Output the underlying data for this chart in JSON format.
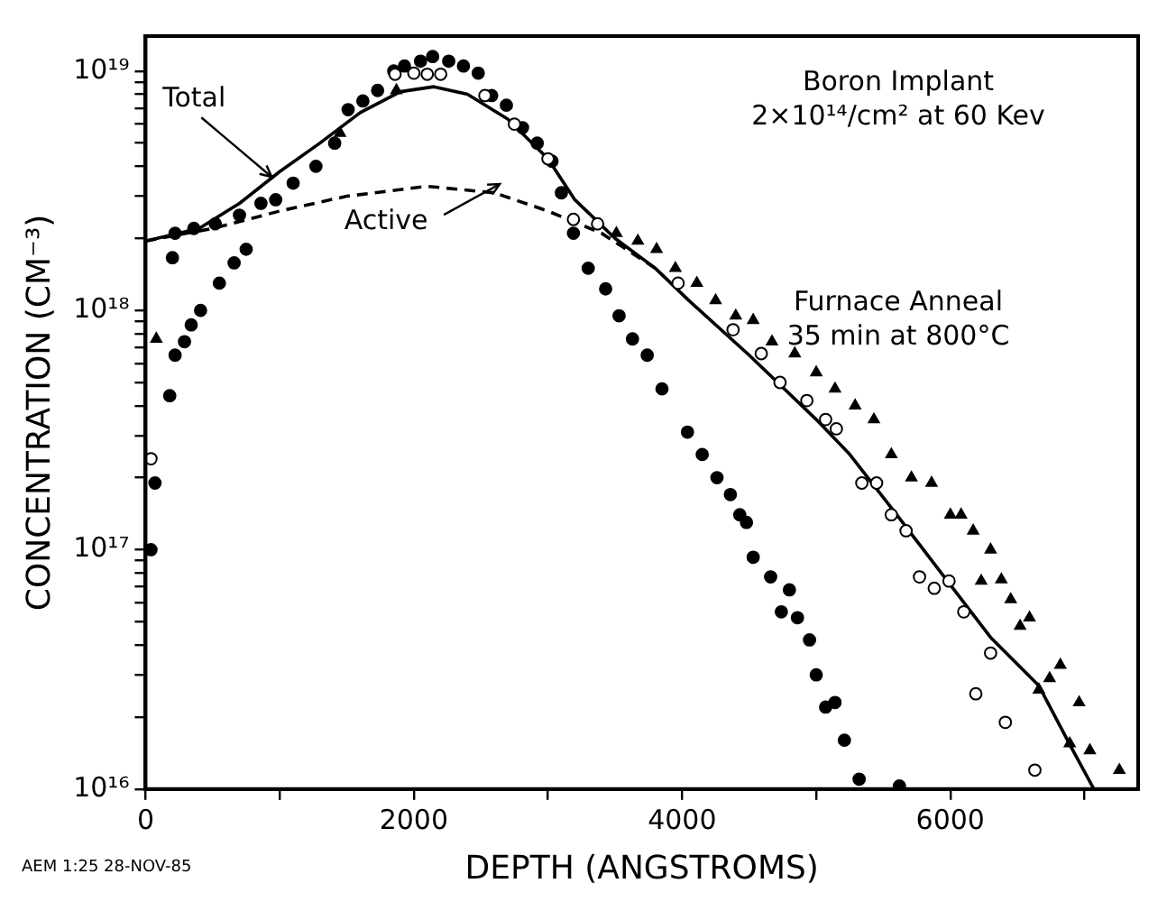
{
  "chart_data": {
    "type": "scatter",
    "xlabel": "DEPTH (ANGSTROMS)",
    "ylabel": "CONCENTRATION (CM⁻³)",
    "log": "y",
    "grid": false,
    "legend": false,
    "xlim": [
      0,
      7400
    ],
    "xticks": [
      0,
      {
        "value": 1000,
        "label": null
      },
      2000,
      {
        "value": 3000,
        "label": null
      },
      4000,
      {
        "value": 5000,
        "label": null
      },
      6000,
      {
        "value": 7000,
        "label": null
      }
    ],
    "ylim": [
      1e+16,
      1.4e+19
    ],
    "yticks": [
      {
        "value": 1e+16,
        "label": "10¹⁶"
      },
      {
        "value": 2e+16,
        "label": null
      },
      {
        "value": 3e+16,
        "label": null
      },
      {
        "value": 4e+16,
        "label": null
      },
      {
        "value": 5e+16,
        "label": null
      },
      {
        "value": 6e+16,
        "label": null
      },
      {
        "value": 7e+16,
        "label": null
      },
      {
        "value": 8e+16,
        "label": null
      },
      {
        "value": 9e+16,
        "label": null
      },
      {
        "value": 1e+17,
        "label": "10¹⁷"
      },
      {
        "value": 2e+17,
        "label": null
      },
      {
        "value": 3e+17,
        "label": null
      },
      {
        "value": 4e+17,
        "label": null
      },
      {
        "value": 5e+17,
        "label": null
      },
      {
        "value": 6e+17,
        "label": null
      },
      {
        "value": 7e+17,
        "label": null
      },
      {
        "value": 8e+17,
        "label": null
      },
      {
        "value": 9e+17,
        "label": null
      },
      {
        "value": 1e+18,
        "label": "10¹⁸"
      },
      {
        "value": 2e+18,
        "label": null
      },
      {
        "value": 3e+18,
        "label": null
      },
      {
        "value": 4e+18,
        "label": null
      },
      {
        "value": 5e+18,
        "label": null
      },
      {
        "value": 6e+18,
        "label": null
      },
      {
        "value": 7e+18,
        "label": null
      },
      {
        "value": 8e+18,
        "label": null
      },
      {
        "value": 9e+18,
        "label": null
      },
      {
        "value": 1e+19,
        "label": "10¹⁹"
      }
    ],
    "series": [
      {
        "type": "scatter",
        "marker": "circle",
        "color": "#000000",
        "x": [
          40,
          70,
          180,
          200,
          220,
          220,
          290,
          340,
          360,
          410,
          520,
          550,
          660,
          700,
          750,
          860,
          970,
          1100,
          1270,
          1410,
          1510,
          1620,
          1730,
          1850,
          1930,
          2050,
          2140,
          2260,
          2370,
          2480,
          2580,
          2690,
          2810,
          2920,
          3030,
          3100,
          3190,
          3300,
          3430,
          3530,
          3630,
          3740,
          3850,
          4040,
          4150,
          4260,
          4360,
          4430,
          4480,
          4530,
          4660,
          4740,
          4800,
          4860,
          4950,
          5000,
          5070,
          5140,
          5210,
          5320,
          5620
        ],
        "values": [
          1e+17,
          1.9e+17,
          4.4e+17,
          1.66e+18,
          6.5e+17,
          2.1e+18,
          7.4e+17,
          8.7e+17,
          2.2e+18,
          1e+18,
          2.3e+18,
          1.3e+18,
          1.58e+18,
          2.5e+18,
          1.8e+18,
          2.8e+18,
          2.9e+18,
          3.4e+18,
          4e+18,
          5e+18,
          6.9e+18,
          7.5e+18,
          8.3e+18,
          1e+19,
          1.05e+19,
          1.1e+19,
          1.15e+19,
          1.1e+19,
          1.05e+19,
          9.8e+18,
          7.9e+18,
          7.2e+18,
          5.8e+18,
          5e+18,
          4.2e+18,
          3.1e+18,
          2.1e+18,
          1.5e+18,
          1.23e+18,
          9.5e+17,
          7.6e+17,
          6.5e+17,
          4.7e+17,
          3.1e+17,
          2.5e+17,
          2e+17,
          1.7e+17,
          1.4e+17,
          1.3e+17,
          9.3e+16,
          7.7e+16,
          5.5e+16,
          6.8e+16,
          5.2e+16,
          4.2e+16,
          3e+16,
          2.2e+16,
          2.3e+16,
          1.6e+16,
          1.1e+16,
          1.03e+16
        ]
      },
      {
        "type": "scatter",
        "marker": "circle",
        "color": "#000000",
        "x": [
          40,
          1860,
          2000,
          2100,
          2200,
          2530,
          2750,
          3000,
          3190,
          3370,
          3970,
          4380,
          4590,
          4730,
          4930,
          5070,
          5150,
          5340,
          5450,
          5560,
          5670,
          5770,
          5880,
          5990,
          6100,
          6190,
          6300,
          6410,
          6630
        ],
        "values": [
          2.4e+17,
          9.7e+18,
          9.8e+18,
          9.7e+18,
          9.7e+18,
          7.9e+18,
          6e+18,
          4.3e+18,
          2.4e+18,
          2.3e+18,
          1.3e+18,
          8.3e+17,
          6.6e+17,
          5e+17,
          4.2e+17,
          3.5e+17,
          3.2e+17,
          1.9e+17,
          1.9e+17,
          1.4e+17,
          1.2e+17,
          7.7e+16,
          6.9e+16,
          7.4e+16,
          5.5e+16,
          2.5e+16,
          3.7e+16,
          1.9e+16,
          1.2e+16
        ]
      },
      {
        "type": "scatter",
        "marker": "triangle",
        "color": "#000000",
        "x": [
          80,
          1450,
          1870,
          3510,
          3670,
          3810,
          3950,
          4110,
          4250,
          4400,
          4530,
          4670,
          4840,
          5000,
          5140,
          5290,
          5430,
          5560,
          5710,
          5860,
          6000,
          6080,
          6170,
          6230,
          6300,
          6380,
          6450,
          6520,
          6590,
          6660,
          6740,
          6820,
          6890,
          6960,
          7040,
          7260
        ],
        "values": [
          7.6e+17,
          5.5e+18,
          8.3e+18,
          2.1e+18,
          1.95e+18,
          1.8e+18,
          1.5e+18,
          1.3e+18,
          1.1e+18,
          9.5e+17,
          9.1e+17,
          7.4e+17,
          6.6e+17,
          5.5e+17,
          4.7e+17,
          4e+17,
          3.5e+17,
          2.5e+17,
          2e+17,
          1.9e+17,
          1.4e+17,
          1.4e+17,
          1.2e+17,
          7.4e+16,
          1e+17,
          7.5e+16,
          6.2e+16,
          4.8e+16,
          5.2e+16,
          2.6e+16,
          2.9e+16,
          3.3e+16,
          1.55e+16,
          2.3e+16,
          1.45e+16,
          1.2e+16
        ]
      },
      {
        "type": "line",
        "marker": "none",
        "line_style": "solid",
        "color": "#000000",
        "x": [
          0,
          400,
          700,
          1000,
          1300,
          1600,
          1900,
          2150,
          2400,
          2700,
          3000,
          3200,
          3500,
          3800,
          4050,
          4500,
          5000,
          5250,
          5600,
          5970,
          6300,
          6660,
          6900,
          7070
        ],
        "values": [
          1.95e+18,
          2.2e+18,
          2.8e+18,
          3.8e+18,
          5e+18,
          6.7e+18,
          8.2e+18,
          8.6e+18,
          8e+18,
          6.3e+18,
          4.3e+18,
          2.9e+18,
          2e+18,
          1.5e+18,
          1.1e+18,
          6.5e+17,
          3.5e+17,
          2.5e+17,
          1.4e+17,
          7.5e+16,
          4.3e+16,
          2.7e+16,
          1.5e+16,
          1e+16
        ]
      },
      {
        "type": "line",
        "marker": "none",
        "line_style": "dashed",
        "color": "#000000",
        "x": [
          0,
          500,
          1000,
          1500,
          2100,
          2600,
          3000,
          3400,
          3800
        ],
        "values": [
          1.95e+18,
          2.2e+18,
          2.6e+18,
          3e+18,
          3.3e+18,
          3.1e+18,
          2.6e+18,
          2.1e+18,
          1.5e+18
        ]
      }
    ],
    "annotations": [
      {
        "text": "Total",
        "x": 900,
        "y": 3.8e+18
      },
      {
        "text": "Active",
        "x": 2600,
        "y": 3.2e+18
      },
      "Boron Implant\n2×10¹⁴/cm² at 60 Kev",
      "Furnace Anneal\n35 min at 800°C",
      "AEM 1:25 28-NOV-85"
    ]
  }
}
